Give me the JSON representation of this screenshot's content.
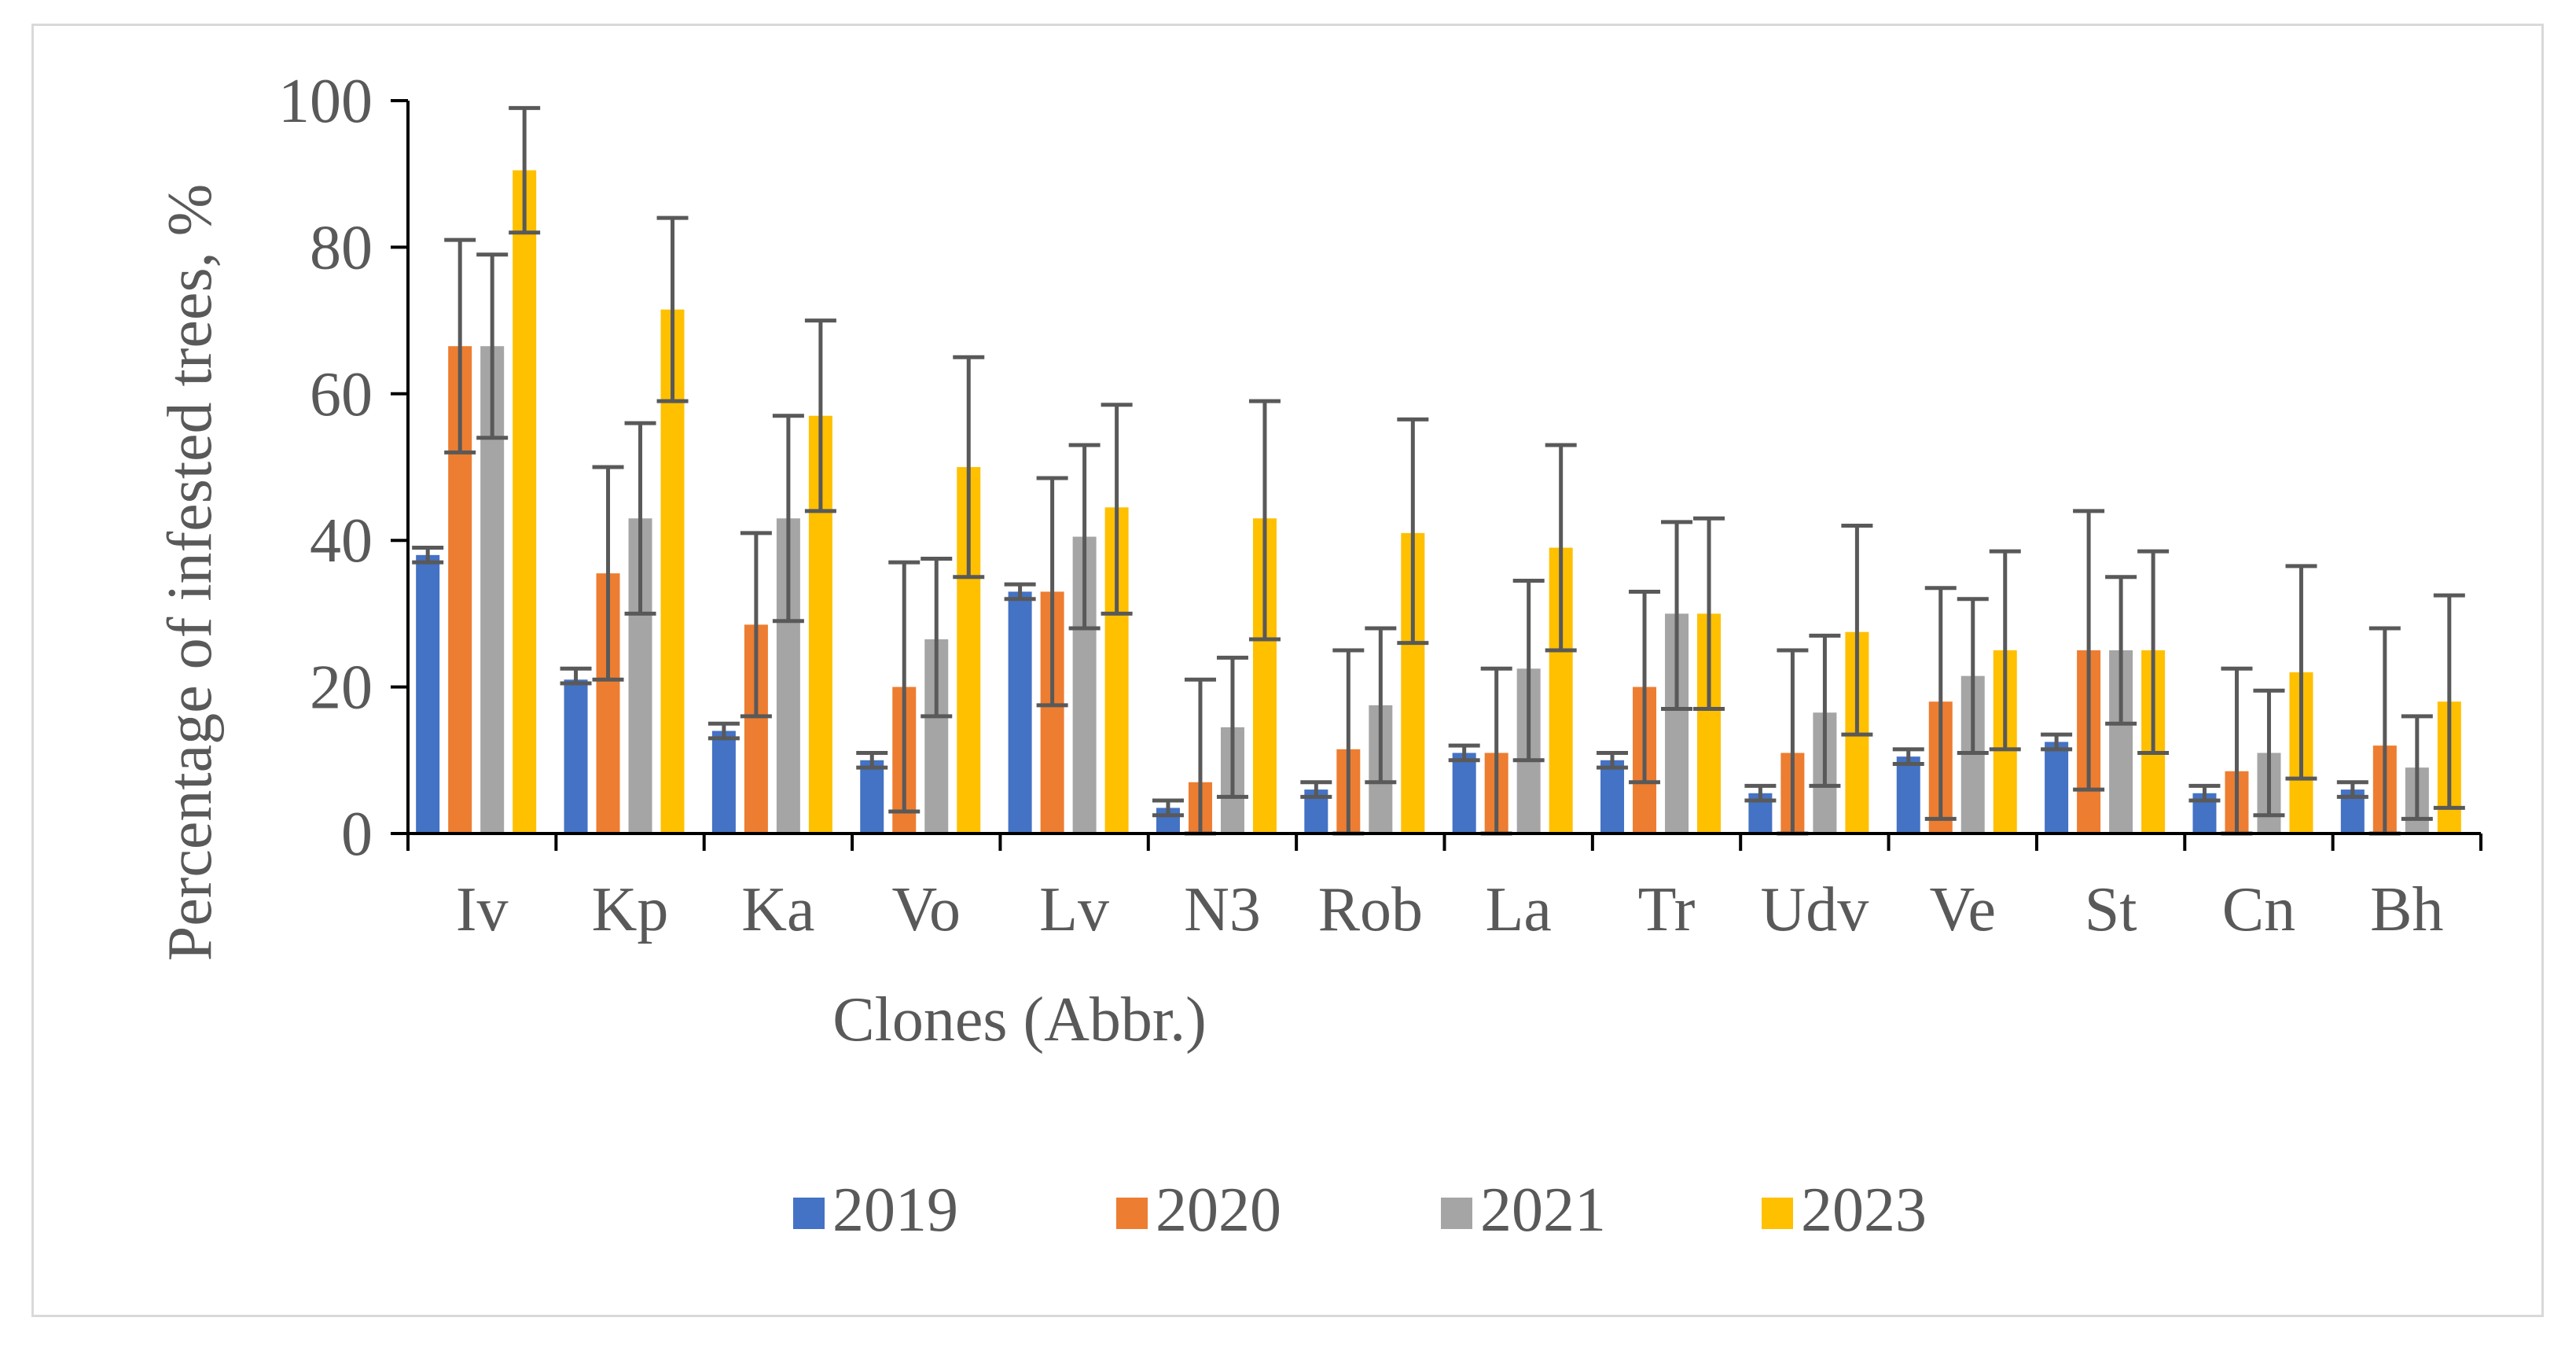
{
  "chart_data": {
    "type": "bar",
    "title": "",
    "xlabel": "Clones (Abbr.)",
    "ylabel": "Percentage of infested trees, %",
    "ylim": [
      0,
      100
    ],
    "yticks": [
      0,
      20,
      40,
      60,
      80,
      100
    ],
    "grid": false,
    "legend_position": "bottom",
    "categories": [
      "Iv",
      "Kp",
      "Ka",
      "Vo",
      "Lv",
      "N3",
      "Rob",
      "La",
      "Tr",
      "Udv",
      "Ve",
      "St",
      "Cn",
      "Bh"
    ],
    "series": [
      {
        "name": "2019",
        "color": "#4472C4",
        "values": [
          38,
          21,
          14,
          10,
          33,
          3.5,
          6,
          11,
          10,
          5.5,
          10.5,
          12.5,
          5.5,
          6
        ],
        "err_low": [
          37,
          20.5,
          13,
          9,
          32,
          2.5,
          5,
          10,
          9,
          4.5,
          9.5,
          11.5,
          4.5,
          5
        ],
        "err_high": [
          39,
          22.5,
          15,
          11,
          34,
          4.5,
          7,
          12,
          11,
          6.5,
          11.5,
          13.5,
          6.5,
          7
        ]
      },
      {
        "name": "2020",
        "color": "#ED7D31",
        "values": [
          66.5,
          35.5,
          28.5,
          20,
          33,
          7,
          11.5,
          11,
          20,
          11,
          18,
          25,
          8.5,
          12
        ],
        "err_low": [
          52,
          21,
          16,
          3,
          17.5,
          0,
          0,
          0,
          7,
          0,
          2,
          6,
          0,
          0
        ],
        "err_high": [
          81,
          50,
          41,
          37,
          48.5,
          21,
          25,
          22.5,
          33,
          25,
          33.5,
          44,
          22.5,
          28
        ]
      },
      {
        "name": "2021",
        "color": "#A5A5A5",
        "values": [
          66.5,
          43,
          43,
          26.5,
          40.5,
          14.5,
          17.5,
          22.5,
          30,
          16.5,
          21.5,
          25,
          11,
          9
        ],
        "err_low": [
          54,
          30,
          29,
          16,
          28,
          5,
          7,
          10,
          17,
          6.5,
          11,
          15,
          2.5,
          2
        ],
        "err_high": [
          79,
          56,
          57,
          37.5,
          53,
          24,
          28,
          34.5,
          42.5,
          27,
          32,
          35,
          19.5,
          16
        ]
      },
      {
        "name": "2023",
        "color": "#FFC000",
        "values": [
          90.5,
          71.5,
          57,
          50,
          44.5,
          43,
          41,
          39,
          30,
          27.5,
          25,
          25,
          22,
          18
        ],
        "err_low": [
          82,
          59,
          44,
          35,
          30,
          26.5,
          26,
          25,
          17,
          13.5,
          11.5,
          11,
          7.5,
          3.5
        ],
        "err_high": [
          99,
          84,
          70,
          65,
          58.5,
          59,
          56.5,
          53,
          43,
          42,
          38.5,
          38.5,
          36.5,
          32.5
        ]
      }
    ]
  }
}
